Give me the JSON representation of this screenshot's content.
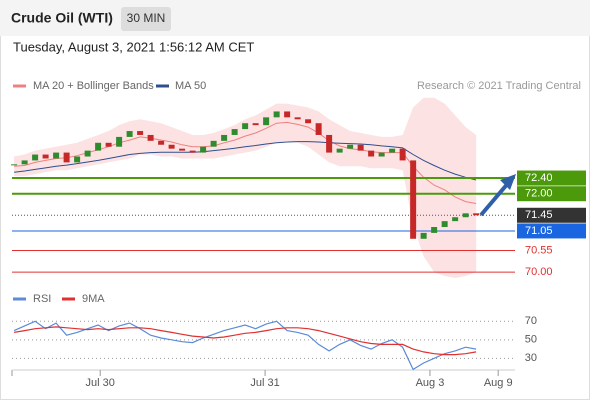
{
  "header": {
    "title": "Crude Oil (WTI)",
    "interval": "30 MIN",
    "date": "Tuesday, August 3, 2021 1:56:12 AM CET"
  },
  "chart_data": [
    {
      "type": "candlestick",
      "legend": [
        {
          "name": "MA 20 + Bollinger Bands",
          "color": "#f08080"
        },
        {
          "name": "MA 50",
          "color": "#2f4f8f"
        }
      ],
      "credit": "Research © 2021 Trading Central",
      "xlim": [
        -0.2,
        47.7
      ],
      "ylim": [
        69.67,
        74.52
      ],
      "xticks": [
        {
          "value": 8.2,
          "label": "Jul 30"
        },
        {
          "value": 23.9,
          "label": "Jul 31"
        },
        {
          "value": 39.6,
          "label": "Aug 3"
        },
        {
          "value": 46.1,
          "label": "Aug 9"
        }
      ],
      "up_color": "#2e8b2e",
      "down_color": "#c62828",
      "close": [
        72.75,
        72.85,
        73.0,
        72.9,
        73.05,
        72.8,
        72.95,
        73.1,
        73.3,
        73.2,
        73.45,
        73.6,
        73.5,
        73.35,
        73.25,
        73.15,
        73.1,
        73.05,
        73.2,
        73.35,
        73.5,
        73.65,
        73.8,
        73.75,
        73.95,
        74.1,
        73.95,
        73.9,
        73.8,
        73.5,
        73.05,
        73.15,
        73.25,
        73.1,
        72.95,
        73.05,
        73.15,
        72.85,
        70.85,
        71.0,
        71.15,
        71.3,
        71.4,
        71.5,
        71.45
      ],
      "band_upper": [
        72.95,
        73.0,
        73.1,
        73.15,
        73.2,
        73.25,
        73.3,
        73.4,
        73.5,
        73.6,
        73.75,
        73.85,
        73.9,
        73.85,
        73.8,
        73.7,
        73.6,
        73.5,
        73.5,
        73.55,
        73.65,
        73.75,
        73.9,
        74.0,
        74.15,
        74.3,
        74.3,
        74.25,
        74.2,
        74.1,
        73.9,
        73.75,
        73.6,
        73.55,
        73.5,
        73.45,
        73.45,
        73.5,
        74.2,
        74.45,
        74.45,
        74.3,
        74.0,
        73.7,
        73.5
      ],
      "band_lower": [
        72.45,
        72.45,
        72.5,
        72.55,
        72.6,
        72.6,
        72.65,
        72.7,
        72.75,
        72.8,
        72.85,
        72.9,
        73.0,
        73.0,
        72.95,
        72.95,
        72.9,
        72.9,
        72.9,
        72.9,
        72.95,
        73.0,
        73.05,
        73.1,
        73.2,
        73.3,
        73.35,
        73.3,
        73.2,
        73.0,
        72.8,
        72.7,
        72.7,
        72.7,
        72.65,
        72.65,
        72.65,
        72.6,
        71.2,
        70.4,
        70.0,
        69.9,
        69.85,
        69.9,
        70.0
      ],
      "ma20": [
        72.7,
        72.72,
        72.8,
        72.85,
        72.9,
        72.92,
        72.97,
        73.05,
        73.12,
        73.2,
        73.3,
        73.37,
        73.45,
        73.42,
        73.37,
        73.32,
        73.25,
        73.2,
        73.2,
        73.22,
        73.3,
        73.37,
        73.47,
        73.55,
        73.67,
        73.8,
        73.82,
        73.77,
        73.7,
        73.55,
        73.35,
        73.22,
        73.15,
        73.12,
        73.07,
        73.05,
        73.05,
        73.05,
        72.7,
        72.42,
        72.22,
        72.1,
        71.92,
        71.8,
        71.75
      ],
      "ma50": [
        72.55,
        72.58,
        72.62,
        72.66,
        72.7,
        72.73,
        72.77,
        72.81,
        72.85,
        72.9,
        72.95,
        73.0,
        73.03,
        73.05,
        73.06,
        73.06,
        73.06,
        73.06,
        73.07,
        73.1,
        73.13,
        73.16,
        73.2,
        73.23,
        73.27,
        73.3,
        73.32,
        73.33,
        73.33,
        73.32,
        73.3,
        73.29,
        73.28,
        73.27,
        73.25,
        73.22,
        73.2,
        73.17,
        73.0,
        72.85,
        72.72,
        72.6,
        72.5,
        72.42,
        72.35
      ],
      "levels": [
        {
          "value": 72.4,
          "label": "72.40",
          "color": "#4c9a0c",
          "box": true
        },
        {
          "value": 72,
          "label": "72.00",
          "color": "#4c9a0c",
          "box": true
        },
        {
          "value": 71.45,
          "label": "71.45",
          "color": "#333333",
          "box": true
        },
        {
          "value": 71.05,
          "label": "71.05",
          "color": "#1a66e0",
          "box": true
        },
        {
          "value": 70.55,
          "label": "70.55",
          "color": "#e03030",
          "box": false
        },
        {
          "value": 70,
          "label": "70.00",
          "color": "#e03030",
          "box": false
        }
      ]
    },
    {
      "type": "line",
      "xlim": [
        -0.2,
        47.7
      ],
      "ylim": [
        12,
        93
      ],
      "yticks": [
        70,
        50,
        30
      ],
      "series": [
        {
          "name": "RSI",
          "color": "#5b8bd9",
          "values": [
            60,
            65,
            70,
            62,
            68,
            55,
            58,
            62,
            66,
            60,
            65,
            68,
            62,
            55,
            52,
            50,
            48,
            47,
            52,
            56,
            60,
            63,
            66,
            62,
            67,
            70,
            60,
            58,
            55,
            45,
            38,
            45,
            50,
            44,
            40,
            46,
            50,
            42,
            18,
            25,
            30,
            35,
            38,
            42,
            40
          ]
        },
        {
          "name": "9MA",
          "color": "#e03030",
          "values": [
            58,
            60,
            62,
            63,
            64,
            63,
            62,
            61,
            62,
            61,
            62,
            63,
            63,
            62,
            60,
            58,
            56,
            54,
            53,
            52,
            53,
            55,
            57,
            58,
            60,
            62,
            63,
            63,
            62,
            60,
            57,
            54,
            51,
            48,
            46,
            45,
            45,
            45,
            40,
            37,
            35,
            34,
            34,
            35,
            37
          ]
        }
      ]
    }
  ]
}
